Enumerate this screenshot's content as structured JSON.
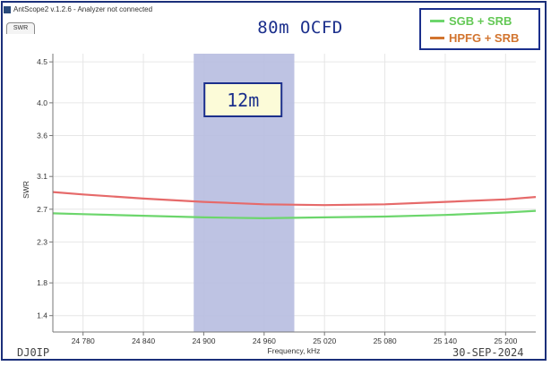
{
  "window": {
    "title": "AntScope2 v.1.2.6 - Analyzer not connected",
    "tab": "SWR"
  },
  "header": {
    "title": "80m OCFD"
  },
  "footer": {
    "callsign": "DJ0IP",
    "date": "30-SEP-2024"
  },
  "colors": {
    "series_green": "#6cd66c",
    "series_red": "#e66a6a",
    "legend_green_text": "#63c855",
    "legend_red_text": "#d2742e",
    "band": "#b7bde0",
    "frame": "#1b2f7a"
  },
  "chart_data": {
    "type": "line",
    "title": "80m OCFD",
    "xlabel": "Frequency, kHz",
    "ylabel": "SWR",
    "xlim": [
      24750,
      25230
    ],
    "ylim": [
      1.2,
      4.6
    ],
    "x_ticks": [
      24780,
      24840,
      24900,
      24960,
      25020,
      25080,
      25140,
      25200
    ],
    "x_tick_labels": [
      "24 780",
      "24 840",
      "24 900",
      "24 960",
      "25 020",
      "25 080",
      "25 140",
      "25 200"
    ],
    "y_ticks": [
      1.4,
      1.8,
      2.3,
      2.7,
      3.1,
      3.6,
      4.0,
      4.5
    ],
    "y_tick_labels": [
      "1.4",
      "1.8",
      "2.3",
      "2.7",
      "3.1",
      "3.6",
      "4.0",
      "4.5"
    ],
    "grid": true,
    "legend_position": "top-right",
    "band": {
      "x_start": 24890,
      "x_end": 24990,
      "label": "12m"
    },
    "series": [
      {
        "name": "SGB + SRB",
        "x": [
          24750,
          24780,
          24840,
          24900,
          24960,
          25020,
          25080,
          25140,
          25200,
          25230
        ],
        "values": [
          2.65,
          2.64,
          2.62,
          2.6,
          2.59,
          2.6,
          2.61,
          2.63,
          2.66,
          2.68
        ]
      },
      {
        "name": "HPFG + SRB",
        "x": [
          24750,
          24780,
          24840,
          24900,
          24960,
          25020,
          25080,
          25140,
          25200,
          25230
        ],
        "values": [
          2.91,
          2.88,
          2.83,
          2.79,
          2.76,
          2.75,
          2.76,
          2.79,
          2.82,
          2.85
        ]
      }
    ]
  }
}
